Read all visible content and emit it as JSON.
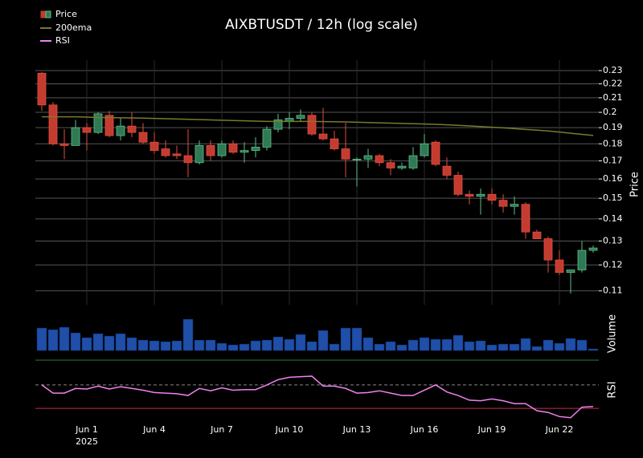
{
  "chart_data": [
    {
      "type": "candlestick",
      "title": "AIXBTUSDT / 12h (log scale)",
      "name": "Price",
      "ylabel": "Price",
      "log_scale": true,
      "grid": true,
      "up_color": "#2f7a54",
      "down_color": "#c43b2f",
      "open": [
        0.228,
        0.205,
        0.18,
        0.179,
        0.19,
        0.187,
        0.198,
        0.185,
        0.191,
        0.187,
        0.181,
        0.177,
        0.174,
        0.173,
        0.169,
        0.179,
        0.173,
        0.18,
        0.175,
        0.176,
        0.178,
        0.189,
        0.194,
        0.196,
        0.198,
        0.186,
        0.183,
        0.177,
        0.171,
        0.171,
        0.173,
        0.169,
        0.166,
        0.166,
        0.173,
        0.181,
        0.167,
        0.162,
        0.152,
        0.151,
        0.152,
        0.149,
        0.146,
        0.147,
        0.134,
        0.131,
        0.122,
        0.117,
        0.118,
        0.126
      ],
      "high": [
        0.229,
        0.207,
        0.189,
        0.195,
        0.193,
        0.2,
        0.201,
        0.196,
        0.2,
        0.193,
        0.187,
        0.182,
        0.179,
        0.189,
        0.182,
        0.182,
        0.182,
        0.182,
        0.181,
        0.184,
        0.191,
        0.199,
        0.2,
        0.202,
        0.2,
        0.203,
        0.188,
        0.193,
        0.172,
        0.177,
        0.174,
        0.171,
        0.169,
        0.178,
        0.186,
        0.182,
        0.172,
        0.164,
        0.154,
        0.155,
        0.155,
        0.152,
        0.151,
        0.148,
        0.135,
        0.132,
        0.126,
        0.118,
        0.13,
        0.128
      ],
      "low": [
        0.201,
        0.179,
        0.171,
        0.179,
        0.176,
        0.186,
        0.184,
        0.182,
        0.184,
        0.18,
        0.174,
        0.172,
        0.171,
        0.161,
        0.168,
        0.17,
        0.172,
        0.174,
        0.169,
        0.172,
        0.176,
        0.187,
        0.189,
        0.194,
        0.185,
        0.182,
        0.176,
        0.161,
        0.156,
        0.166,
        0.167,
        0.162,
        0.165,
        0.165,
        0.172,
        0.167,
        0.16,
        0.151,
        0.147,
        0.142,
        0.147,
        0.143,
        0.142,
        0.131,
        0.131,
        0.117,
        0.116,
        0.109,
        0.117,
        0.125
      ],
      "close": [
        0.205,
        0.18,
        0.179,
        0.19,
        0.187,
        0.199,
        0.185,
        0.191,
        0.187,
        0.181,
        0.176,
        0.173,
        0.173,
        0.169,
        0.179,
        0.173,
        0.18,
        0.175,
        0.176,
        0.178,
        0.189,
        0.195,
        0.196,
        0.198,
        0.186,
        0.183,
        0.177,
        0.171,
        0.171,
        0.173,
        0.169,
        0.166,
        0.167,
        0.173,
        0.18,
        0.168,
        0.162,
        0.152,
        0.151,
        0.152,
        0.149,
        0.146,
        0.147,
        0.134,
        0.131,
        0.122,
        0.117,
        0.118,
        0.126,
        0.127
      ],
      "series": [
        {
          "name": "200ema",
          "color": "#7a7a2e",
          "values": [
            0.197,
            0.197,
            0.197,
            0.197,
            0.1968,
            0.1966,
            0.1965,
            0.1964,
            0.1963,
            0.1962,
            0.196,
            0.1958,
            0.1956,
            0.1954,
            0.1952,
            0.195,
            0.1948,
            0.1946,
            0.1944,
            0.1942,
            0.194,
            0.194,
            0.194,
            0.194,
            0.194,
            0.1939,
            0.1938,
            0.1937,
            0.1935,
            0.1933,
            0.1931,
            0.1929,
            0.1927,
            0.1925,
            0.1923,
            0.1921,
            0.1918,
            0.1915,
            0.1911,
            0.1907,
            0.1903,
            0.1899,
            0.1894,
            0.1889,
            0.1884,
            0.1879,
            0.1872,
            0.1865,
            0.1858,
            0.1851
          ]
        }
      ],
      "ylim": [
        0.105,
        0.235
      ],
      "yticks": [
        0.11,
        0.12,
        0.13,
        0.14,
        0.15,
        0.16,
        0.17,
        0.18,
        0.19,
        0.2,
        0.21,
        0.22,
        0.23
      ],
      "xticks": [
        {
          "value": 4,
          "label": "Jun 1"
        },
        {
          "value": 10,
          "label": "Jun 4"
        },
        {
          "value": 16,
          "label": "Jun 7"
        },
        {
          "value": 22,
          "label": "Jun 10"
        },
        {
          "value": 28,
          "label": "Jun 13"
        },
        {
          "value": 34,
          "label": "Jun 16"
        },
        {
          "value": 40,
          "label": "Jun 19"
        },
        {
          "value": 46,
          "label": "Jun 22"
        }
      ],
      "xtick_year": "2025"
    },
    {
      "type": "bar",
      "ylabel": "Volume",
      "color": "#1f4fa8",
      "ylim": [
        0,
        42
      ],
      "values": [
        28,
        26,
        29,
        22,
        16,
        21,
        18,
        21,
        16,
        13,
        12,
        11,
        12,
        39,
        13,
        13,
        9,
        7,
        8,
        12,
        13,
        17,
        14,
        20,
        11,
        25,
        8,
        28,
        28,
        16,
        8,
        11,
        7,
        13,
        16,
        14,
        14,
        19,
        11,
        12,
        7,
        8,
        8,
        15,
        5,
        13,
        9,
        15,
        13,
        2
      ]
    },
    {
      "type": "line",
      "ylabel": "RSI",
      "ylim": [
        0,
        100
      ],
      "hlines": [
        {
          "value": 70,
          "color": "#888888",
          "dashed": true
        },
        {
          "value": 30,
          "color": "#c0304a",
          "dashed": false
        }
      ],
      "series": [
        {
          "name": "RSI",
          "color": "#ee82ee",
          "values": [
            70,
            56,
            56,
            64,
            63,
            68,
            63,
            67,
            64,
            61,
            57,
            56,
            55,
            52,
            64,
            60,
            65,
            61,
            62,
            62,
            70,
            79,
            83,
            84,
            85,
            68,
            68,
            64,
            56,
            57,
            60,
            56,
            52,
            52,
            61,
            70,
            58,
            52,
            44,
            43,
            46,
            43,
            38,
            38,
            26,
            23,
            16,
            14,
            32,
            33
          ]
        }
      ]
    }
  ]
}
